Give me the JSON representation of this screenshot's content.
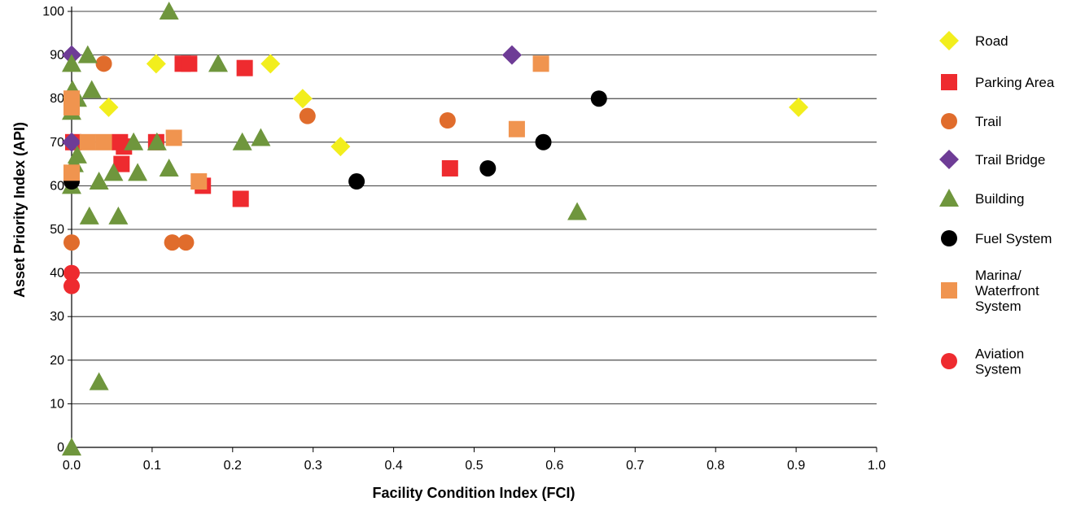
{
  "chart_data": {
    "type": "scatter",
    "title": "",
    "xlabel": "Facility Condition Index (FCI)",
    "ylabel": "Asset Priority Index (API)",
    "xlim": [
      0,
      1
    ],
    "ylim": [
      0,
      100
    ],
    "x_ticks": [
      "0.0",
      "0.1",
      "0.2",
      "0.3",
      "0.4",
      "0.5",
      "0.6",
      "0.7",
      "0.8",
      "0.9",
      "1.0"
    ],
    "y_ticks": [
      "0",
      "10",
      "20",
      "30",
      "40",
      "50",
      "60",
      "70",
      "80",
      "90",
      "100"
    ],
    "grid": "horizontal",
    "legend_position": "right",
    "series": [
      {
        "name": "Road",
        "marker": "diamond",
        "color": "#F2EE1D",
        "points": [
          [
            0.105,
            88
          ],
          [
            0.247,
            88
          ],
          [
            0.046,
            78
          ],
          [
            0.287,
            80
          ],
          [
            0.334,
            69
          ],
          [
            0.903,
            78
          ]
        ]
      },
      {
        "name": "Parking Area",
        "marker": "square",
        "color": "#EE2B2F",
        "points": [
          [
            0.002,
            70
          ],
          [
            0.06,
            70
          ],
          [
            0.065,
            69
          ],
          [
            0.105,
            70
          ],
          [
            0.062,
            65
          ],
          [
            0.138,
            88
          ],
          [
            0.146,
            88
          ],
          [
            0.215,
            87
          ],
          [
            0.163,
            60
          ],
          [
            0.21,
            57
          ],
          [
            0.47,
            64
          ]
        ]
      },
      {
        "name": "Trail",
        "marker": "circle",
        "color": "#E06C2C",
        "points": [
          [
            0.04,
            88
          ],
          [
            0.0,
            47
          ],
          [
            0.125,
            47
          ],
          [
            0.142,
            47
          ],
          [
            0.293,
            76
          ],
          [
            0.467,
            75
          ]
        ]
      },
      {
        "name": "Trail Bridge",
        "marker": "diamond",
        "color": "#6E3C96",
        "points": [
          [
            0.0,
            90
          ],
          [
            0.0,
            70
          ],
          [
            0.547,
            90
          ]
        ]
      },
      {
        "name": "Building",
        "marker": "triangle",
        "color": "#6F963D",
        "points": [
          [
            0.121,
            100
          ],
          [
            0.02,
            90
          ],
          [
            0.0,
            88
          ],
          [
            0.182,
            88
          ],
          [
            0.001,
            82
          ],
          [
            0.025,
            82
          ],
          [
            0.007,
            80
          ],
          [
            0.0,
            77
          ],
          [
            0.007,
            67
          ],
          [
            0.003,
            65
          ],
          [
            0.0,
            60
          ],
          [
            0.077,
            70
          ],
          [
            0.106,
            70
          ],
          [
            0.212,
            70
          ],
          [
            0.235,
            71
          ],
          [
            0.052,
            63
          ],
          [
            0.082,
            63
          ],
          [
            0.121,
            64
          ],
          [
            0.034,
            61
          ],
          [
            0.022,
            53
          ],
          [
            0.058,
            53
          ],
          [
            0.628,
            54
          ],
          [
            0.034,
            15
          ],
          [
            0.0,
            0
          ]
        ]
      },
      {
        "name": "Fuel System",
        "marker": "circle",
        "color": "#000000",
        "points": [
          [
            0.0,
            61
          ],
          [
            0.354,
            61
          ],
          [
            0.517,
            64
          ],
          [
            0.586,
            70
          ],
          [
            0.655,
            80
          ]
        ]
      },
      {
        "name": "Marina/ Waterfront System",
        "label_lines": [
          "Marina/",
          "Waterfront",
          "System"
        ],
        "marker": "square",
        "color": "#F0944F",
        "points": [
          [
            0.0,
            80
          ],
          [
            0.0,
            78
          ],
          [
            0.0,
            63
          ],
          [
            0.02,
            70
          ],
          [
            0.04,
            70
          ],
          [
            0.127,
            71
          ],
          [
            0.158,
            61
          ],
          [
            0.553,
            73
          ],
          [
            0.583,
            88
          ]
        ]
      },
      {
        "name": "Aviation System",
        "label_lines": [
          "Aviation",
          "System"
        ],
        "marker": "circle",
        "color": "#EE2B2F",
        "points": [
          [
            0.0,
            40
          ],
          [
            0.0,
            37
          ]
        ]
      }
    ]
  }
}
